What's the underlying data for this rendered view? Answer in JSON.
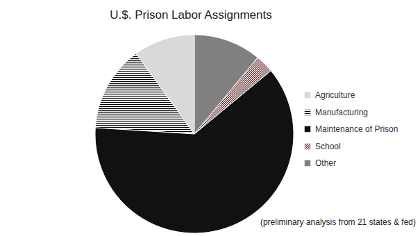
{
  "chart_data": {
    "type": "pie",
    "title": "U.$. Prison Labor Assignments",
    "annotations": [
      "(preliminary analysis from 21 states & fed)"
    ],
    "categories": [
      "Agriculture",
      "Manufacturing",
      "Maintenance of Prison",
      "School",
      "Other"
    ],
    "values": [
      10,
      14,
      62,
      3,
      11
    ],
    "colors": [
      "#d9d9d9",
      "#000000",
      "#111111",
      "#8b1a1a",
      "#808080"
    ],
    "legend": "right"
  }
}
